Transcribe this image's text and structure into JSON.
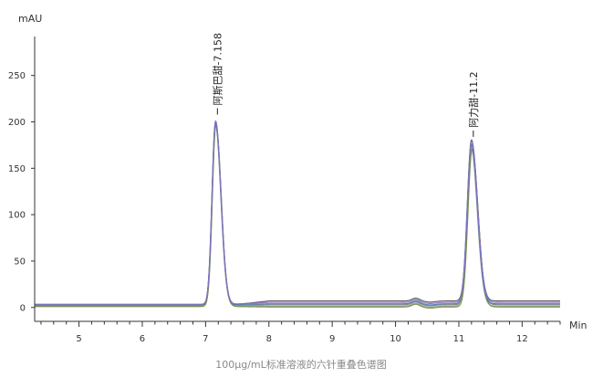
{
  "chart_data": {
    "type": "line",
    "y_unit": "mAU",
    "x_unit": "Min",
    "caption": "100μg/mL标准溶液的六针重叠色谱图",
    "xlim": [
      4.3,
      12.6
    ],
    "ylim": [
      -15,
      292
    ],
    "x_ticks": [
      5,
      6,
      7,
      8,
      9,
      10,
      11,
      12
    ],
    "y_ticks": [
      0,
      50,
      100,
      150,
      200,
      250
    ],
    "grid": false,
    "legend": "none",
    "peaks": [
      {
        "label": "阿斯巴甜-7.158",
        "rt": 7.158,
        "height": 200
      },
      {
        "label": "阿力甜-11.2",
        "rt": 11.2,
        "height": 176
      }
    ],
    "series": [
      {
        "color": "#555555",
        "baseline": 2.5,
        "tail": 7.0,
        "p1": 200,
        "p2": 176,
        "rt1": 7.158,
        "rt2": 11.2
      },
      {
        "color": "#7a7a7a",
        "baseline": 2.0,
        "tail": 3.0,
        "p1": 198,
        "p2": 174,
        "rt1": 7.16,
        "rt2": 11.205
      },
      {
        "color": "#999999",
        "baseline": 1.5,
        "tail": 1.5,
        "p1": 197,
        "p2": 172,
        "rt1": 7.155,
        "rt2": 11.195
      },
      {
        "color": "#6b8e3a",
        "baseline": 1.0,
        "tail": 0.5,
        "p1": 196,
        "p2": 171,
        "rt1": 7.162,
        "rt2": 11.21
      },
      {
        "color": "#4a7ab5",
        "baseline": 3.0,
        "tail": 4.0,
        "p1": 199,
        "p2": 175,
        "rt1": 7.156,
        "rt2": 11.198
      },
      {
        "color": "#8a6fc4",
        "baseline": 3.5,
        "tail": 5.5,
        "p1": 201,
        "p2": 177,
        "rt1": 7.158,
        "rt2": 11.202
      }
    ]
  }
}
